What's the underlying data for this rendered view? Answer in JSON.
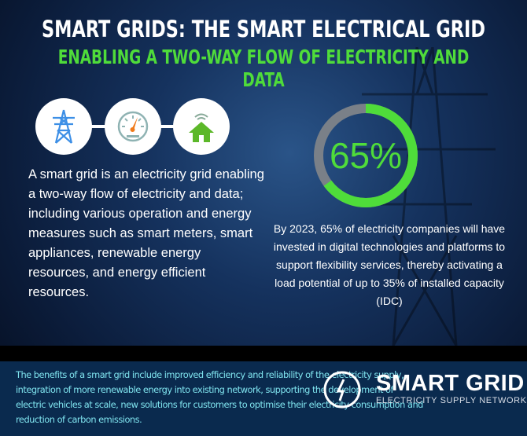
{
  "header": {
    "title": "SMART GRIDS: THE SMART ELECTRICAL GRID",
    "subtitle": "ENABLING A TWO-WAY FLOW OF ELECTRICITY AND DATA"
  },
  "icons": [
    "transmission-tower-icon",
    "meter-gauge-icon",
    "smart-home-icon"
  ],
  "left_text": "A smart grid is an electricity grid enabling a two-way flow of electricity and data; including various operation and energy measures such as smart meters, smart appliances, renewable energy resources, and energy efficient resources.",
  "stat": {
    "value_label": "65%",
    "percent": 65,
    "description": "By 2023, 65% of electricity companies will have invested in digital technologies and platforms to support flexibility services, thereby activating a load potential of up to 35% of installed capacity (IDC)"
  },
  "footer": {
    "text": "The benefits of a smart grid include improved efficiency and reliability of the electricity supply, integration of more renewable energy into existing network, supporting the development of electric vehicles at scale, new solutions for customers to optimise their electricity consumption and reduction of carbon emissions.",
    "logo_title": "SMART GRID",
    "logo_subtitle": "ELECTRICITY SUPPLY NETWORK"
  },
  "colors": {
    "accent_green": "#4fdc3a",
    "ring_gray": "#7a8088",
    "footer_bg": "#0a2a4e",
    "footer_text": "#7fe3ee"
  }
}
